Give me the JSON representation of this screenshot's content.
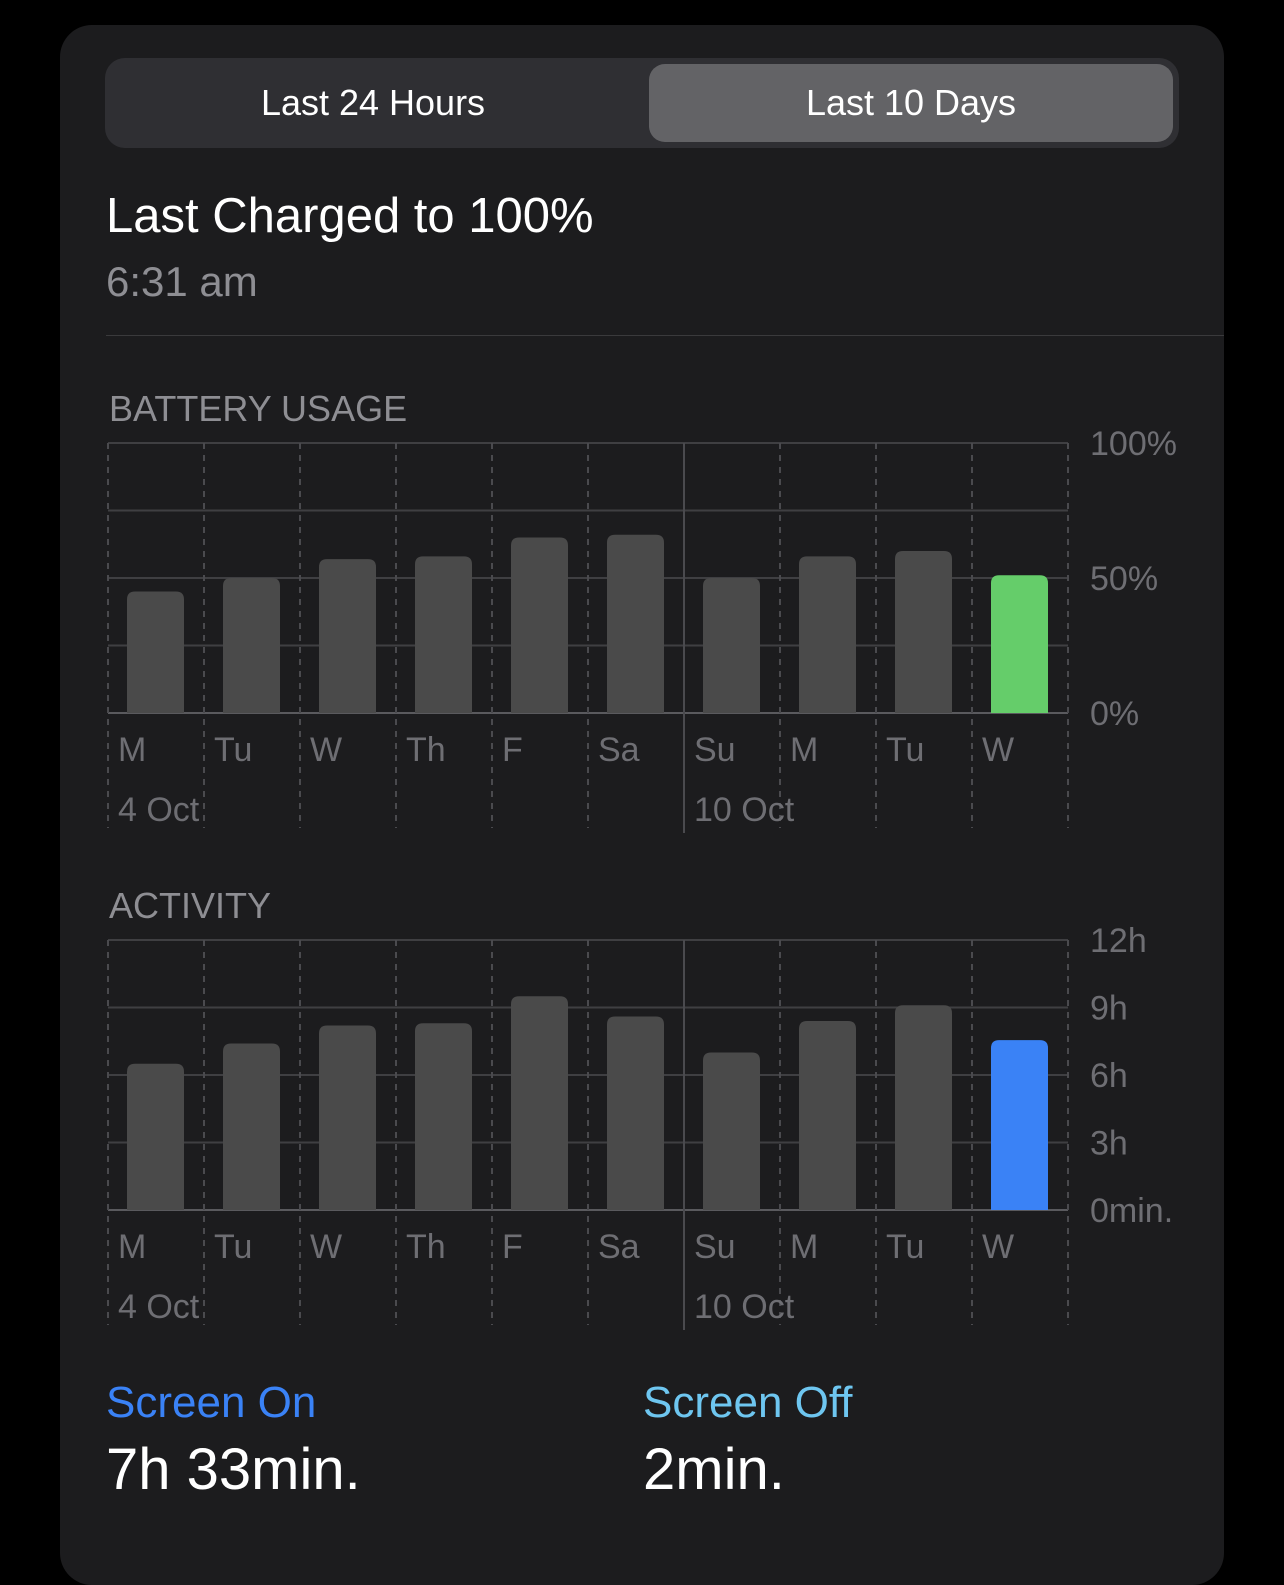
{
  "segmented": {
    "options": [
      "Last 24 Hours",
      "Last 10 Days"
    ],
    "selected": "Last 10 Days"
  },
  "last_charged": {
    "title": "Last Charged to 100%",
    "time": "6:31 am"
  },
  "chart_data": [
    {
      "type": "bar",
      "title": "BATTERY USAGE",
      "categories": [
        "M",
        "Tu",
        "W",
        "Th",
        "F",
        "Sa",
        "Su",
        "M",
        "Tu",
        "W"
      ],
      "date_labels": [
        {
          "index": 0,
          "label": "4 Oct"
        },
        {
          "index": 6,
          "label": "10 Oct"
        }
      ],
      "values": [
        45,
        50,
        57,
        58,
        65,
        66,
        50,
        58,
        60,
        51
      ],
      "unit": "%",
      "ylim": [
        0,
        100
      ],
      "y_ticks": [
        "100%",
        "50%",
        "0%"
      ],
      "y_tick_values": [
        100,
        50,
        0
      ],
      "bar_color": "#4a4a4a",
      "highlight_color": "#65cd6a",
      "highlight_index": 9,
      "grid": true
    },
    {
      "type": "bar",
      "title": "ACTIVITY",
      "categories": [
        "M",
        "Tu",
        "W",
        "Th",
        "F",
        "Sa",
        "Su",
        "M",
        "Tu",
        "W"
      ],
      "date_labels": [
        {
          "index": 0,
          "label": "4 Oct"
        },
        {
          "index": 6,
          "label": "10 Oct"
        }
      ],
      "values": [
        6.5,
        7.4,
        8.2,
        8.3,
        9.5,
        8.6,
        7.0,
        8.4,
        9.1,
        7.55
      ],
      "unit": "h",
      "ylim": [
        0,
        12
      ],
      "y_ticks": [
        "12h",
        "9h",
        "6h",
        "3h",
        "0min."
      ],
      "y_tick_values": [
        12,
        9,
        6,
        3,
        0
      ],
      "bar_color": "#4a4a4a",
      "highlight_color": "#3a82f6",
      "highlight_index": 9,
      "grid": true
    }
  ],
  "footer": {
    "screen_on": {
      "label": "Screen On",
      "value": "7h 33min.",
      "color": "#3a82f6"
    },
    "screen_off": {
      "label": "Screen Off",
      "value": "2min.",
      "color": "#6ec6f0"
    }
  }
}
